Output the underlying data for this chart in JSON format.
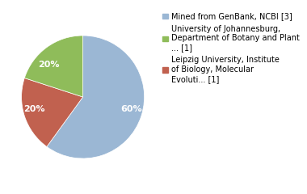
{
  "slices": [
    60,
    20,
    20
  ],
  "colors": [
    "#9bb7d4",
    "#c1614f",
    "#8fbc5a"
  ],
  "labels": [
    "60%",
    "20%",
    "20%"
  ],
  "legend_labels": [
    "Mined from GenBank, NCBI [3]",
    "University of Johannesburg,\nDepartment of Botany and Plant\n... [1]",
    "Leipzig University, Institute\nof Biology, Molecular\nEvoluti... [1]"
  ],
  "legend_colors": [
    "#9bb7d4",
    "#8fbc5a",
    "#c1614f"
  ],
  "startangle": 90,
  "text_color": "#ffffff",
  "text_fontsize": 8,
  "legend_fontsize": 7,
  "background_color": "#ffffff"
}
